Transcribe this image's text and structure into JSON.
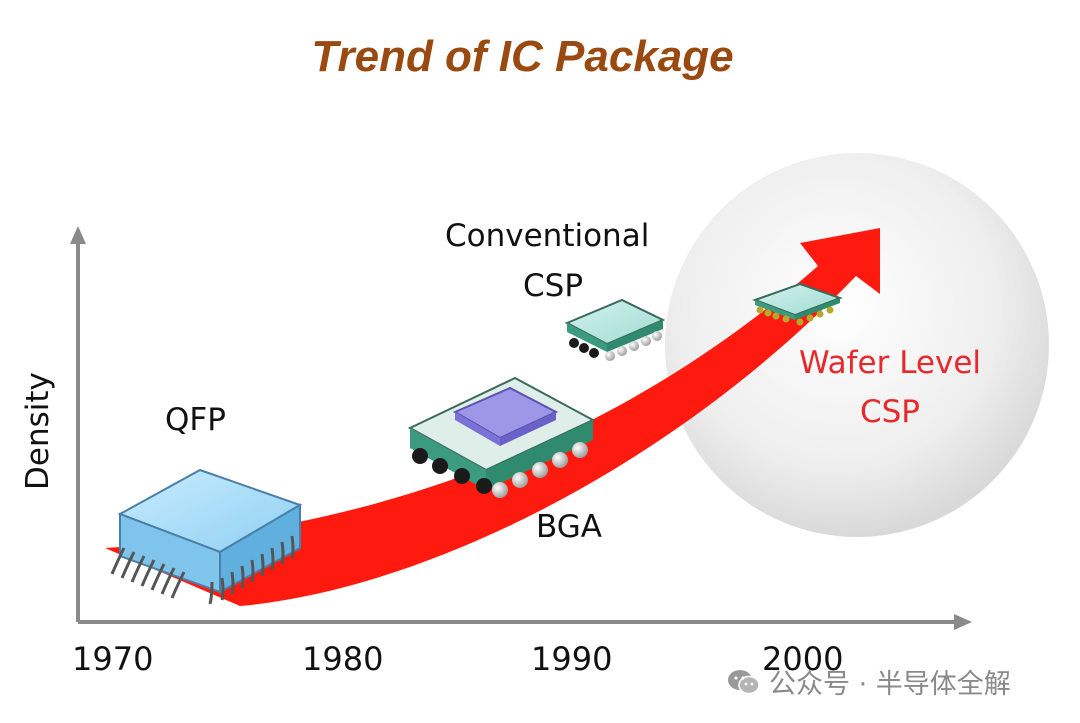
{
  "title": "Trend of IC Package",
  "y_axis_label": "Density",
  "x_ticks": [
    "1970",
    "1980",
    "1990",
    "2000"
  ],
  "packages": {
    "qfp": "QFP",
    "bga": "BGA",
    "conventional_csp_line1": "Conventional",
    "conventional_csp_line2": "CSP",
    "wafer_level_csp_line1": "Wafer Level",
    "wafer_level_csp_line2": "CSP"
  },
  "watermark": "公众号 · 半导体全解",
  "colors": {
    "title": "#9a4a10",
    "arrow": "#ff1a0f",
    "highlight_text": "#e8282b",
    "axis": "#8a8a8a"
  }
}
